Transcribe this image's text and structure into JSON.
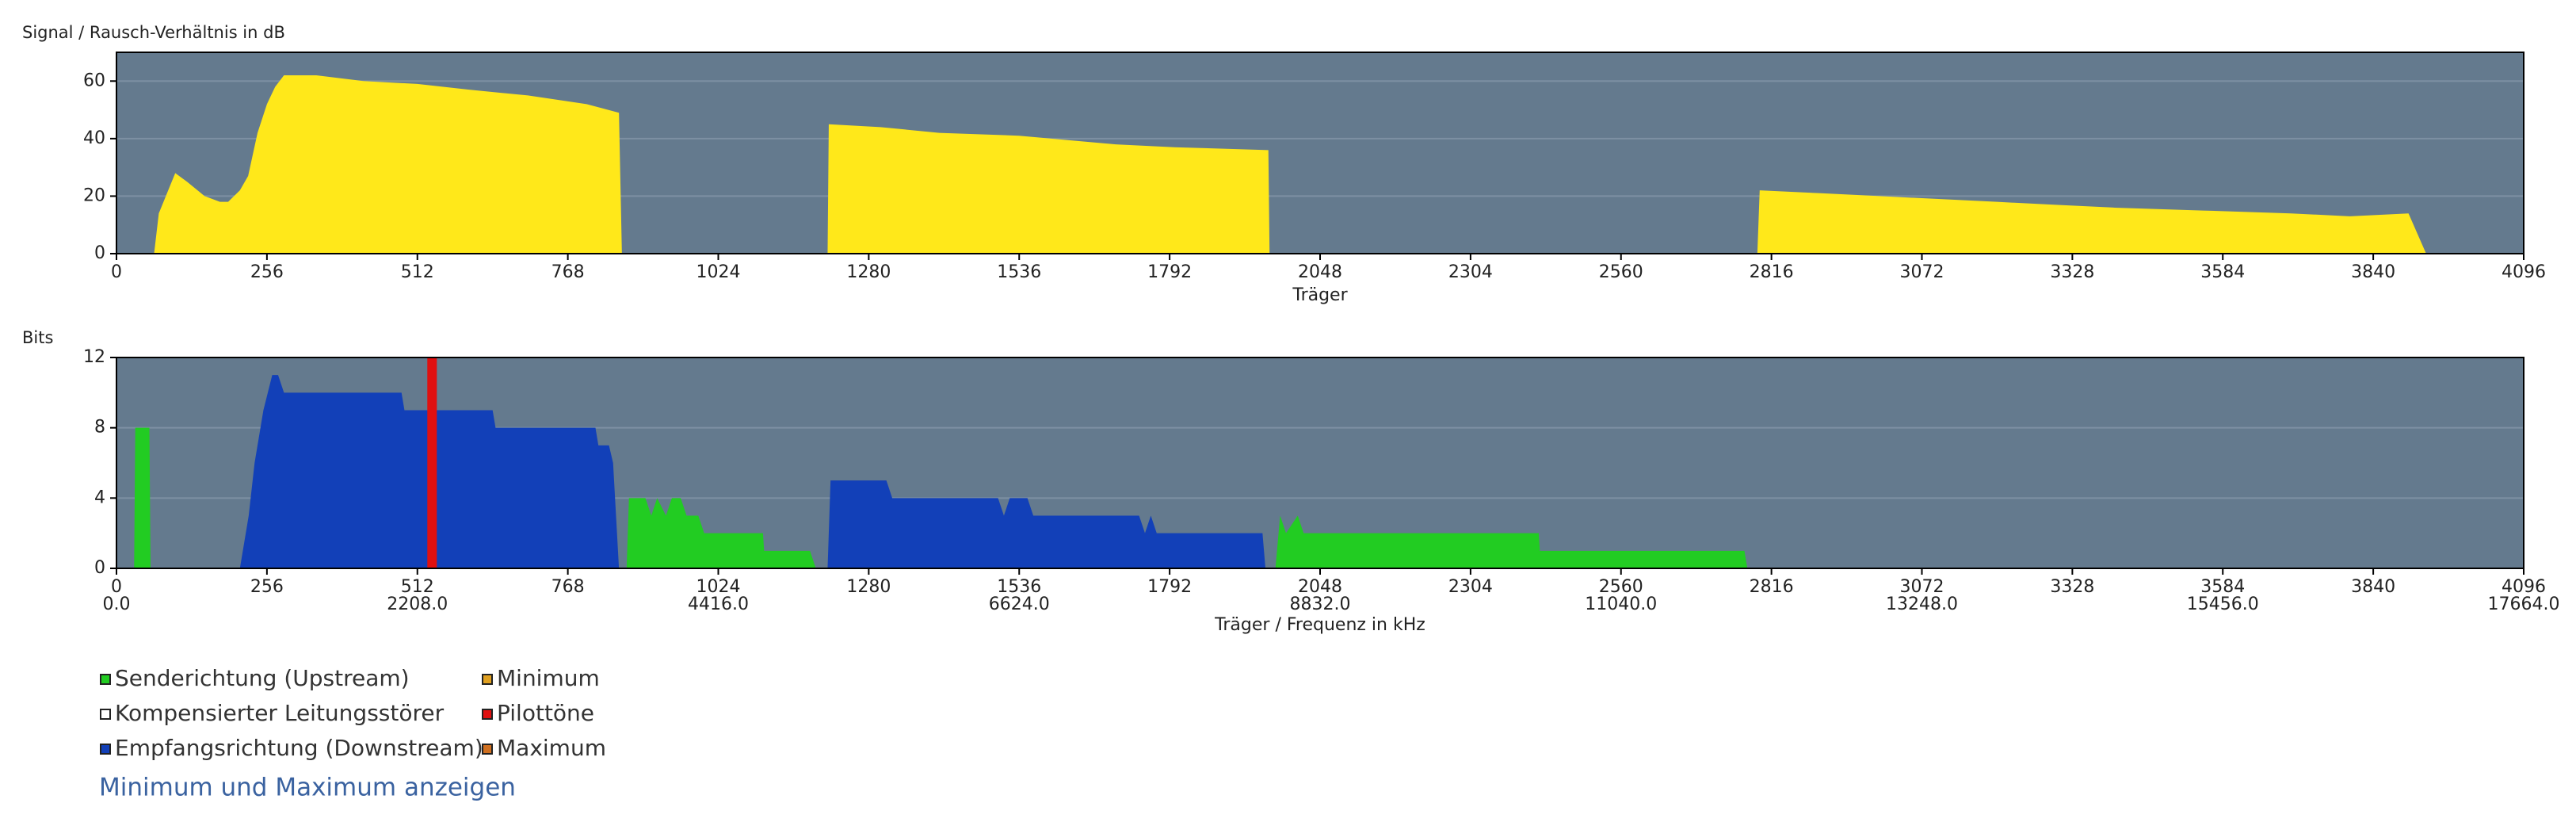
{
  "chart_data": [
    {
      "type": "area",
      "title": "Signal / Rausch-Verhältnis in dB",
      "x_label": "Träger",
      "color": "#ffe81a",
      "x": [
        64,
        72,
        88,
        100,
        120,
        150,
        176,
        190,
        210,
        224,
        240,
        256,
        270,
        285,
        340,
        420,
        512,
        600,
        700,
        800,
        855,
        860,
        null,
        1210,
        1212,
        1300,
        1400,
        1536,
        1700,
        1800,
        1960,
        1962,
        null,
        2792,
        2796,
        2900,
        3000,
        3100,
        3200,
        3300,
        3400,
        3550,
        3700,
        3800,
        3900,
        3930
      ],
      "values": [
        0,
        14,
        22,
        28,
        25,
        20,
        18,
        18,
        22,
        27,
        42,
        52,
        58,
        62,
        62,
        60,
        59,
        57,
        55,
        52,
        49,
        0,
        null,
        0,
        45,
        44,
        42,
        41,
        38,
        37,
        36,
        0,
        null,
        0,
        22,
        21,
        20,
        19,
        18,
        17,
        16,
        15,
        14,
        13,
        14,
        0
      ],
      "xlim": [
        0,
        4096
      ],
      "xticks": [
        0,
        256,
        512,
        768,
        1024,
        1280,
        1536,
        1792,
        2048,
        2304,
        2560,
        2816,
        3072,
        3328,
        3584,
        3840,
        4096
      ],
      "ylim": [
        0,
        70
      ],
      "yticks": [
        0,
        20,
        40,
        60
      ],
      "grid": true
    },
    {
      "type": "area",
      "title": "Bits",
      "x_label": "Träger / Frequenz in kHz",
      "series": [
        {
          "name": "Senderichtung (Upstream)",
          "color": "#22cc22",
          "x": [
            30,
            32,
            56,
            58,
            null,
            868,
            872,
            900,
            910,
            920,
            935,
            945,
            960,
            970,
            990,
            1000,
            1100,
            1102,
            1180,
            1190,
            null,
            1972,
            1980,
            1990,
            2010,
            2020,
            2420,
            2422,
            2770,
            2775
          ],
          "values": [
            0,
            8,
            8,
            0,
            null,
            0,
            4,
            4,
            3,
            4,
            3,
            4,
            4,
            3,
            3,
            2,
            2,
            1,
            1,
            0,
            null,
            0,
            3,
            2,
            3,
            2,
            2,
            1,
            1,
            0
          ]
        },
        {
          "name": "Kompensierter Leitungsstörer",
          "color": "#ffffff",
          "x": [],
          "values": []
        },
        {
          "name": "Empfangsrichtung (Downstream)",
          "color": "#1240b8",
          "x": [
            210,
            225,
            235,
            250,
            265,
            275,
            285,
            485,
            490,
            640,
            645,
            815,
            820,
            838,
            845,
            855,
            null,
            1210,
            1215,
            1310,
            1320,
            1500,
            1510,
            1520,
            1550,
            1560,
            1740,
            1750,
            1760,
            1770,
            1950,
            1955
          ],
          "values": [
            0,
            3,
            6,
            9,
            11,
            11,
            10,
            10,
            9,
            9,
            8,
            8,
            7,
            7,
            6,
            0,
            null,
            0,
            5,
            5,
            4,
            4,
            3,
            4,
            4,
            3,
            3,
            2,
            3,
            2,
            2,
            0
          ]
        },
        {
          "name": "Minimum",
          "color": "#e0a020",
          "x": [],
          "values": []
        },
        {
          "name": "Pilottöne",
          "color": "#e01010",
          "x": [
            537
          ],
          "values": [
            12
          ]
        },
        {
          "name": "Maximum",
          "color": "#d07020",
          "x": [],
          "values": []
        }
      ],
      "xlim": [
        0,
        4096
      ],
      "xticks": [
        0,
        256,
        512,
        768,
        1024,
        1280,
        1536,
        1792,
        2048,
        2304,
        2560,
        2816,
        3072,
        3328,
        3584,
        3840,
        4096
      ],
      "x2lim": [
        0,
        17664
      ],
      "x2ticks": [
        {
          "value": 0,
          "label": "0.0"
        },
        {
          "value": 2208,
          "label": "2208.0"
        },
        {
          "value": 4416,
          "label": "4416.0"
        },
        {
          "value": 6624,
          "label": "6624.0"
        },
        {
          "value": 8832,
          "label": "8832.0"
        },
        {
          "value": 11040,
          "label": "11040.0"
        },
        {
          "value": 13248,
          "label": "13248.0"
        },
        {
          "value": 15456,
          "label": "15456.0"
        },
        {
          "value": 17664,
          "label": "17664.0"
        }
      ],
      "ylim": [
        0,
        12
      ],
      "yticks": [
        0,
        4,
        8,
        12
      ],
      "grid": true
    }
  ],
  "link": "Minimum und Maximum anzeigen"
}
